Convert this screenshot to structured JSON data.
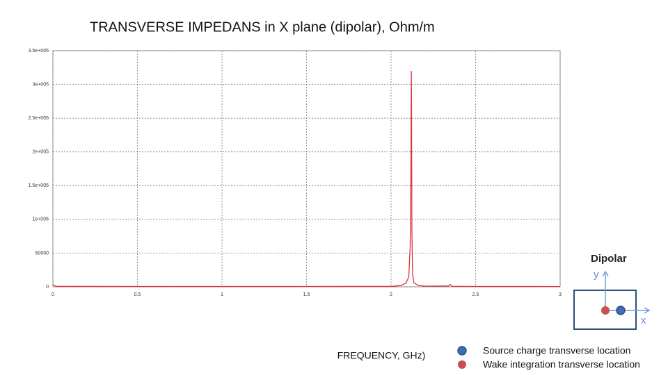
{
  "chart_data": {
    "type": "line",
    "title": "TRANSVERSE IMPEDANS in X plane (dipolar), Ohm/m",
    "x_label": "FREQUENCY, GHz)",
    "x": [
      0,
      0.02,
      0.5,
      1,
      1.5,
      2.0,
      2.06,
      2.09,
      2.105,
      2.113,
      2.117,
      2.12,
      2.121,
      2.123,
      2.127,
      2.135,
      2.16,
      2.2,
      2.34,
      2.35,
      2.36,
      2.5,
      3
    ],
    "series": [
      {
        "color": "#d9363e",
        "values": [
          3000,
          600,
          500,
          500,
          500,
          600,
          2000,
          6000,
          15000,
          60000,
          160000,
          320000,
          276000,
          90000,
          20000,
          6000,
          2000,
          1000,
          1200,
          3500,
          800,
          500,
          400
        ]
      }
    ],
    "xlim": [
      0,
      3
    ],
    "ylim": [
      0,
      350000
    ],
    "xticks": [
      0,
      0.5,
      1,
      1.5,
      2,
      2.5,
      3
    ],
    "yticks": [
      0,
      50000,
      {
        "value": 100000,
        "label": "1e+005"
      },
      {
        "value": 150000,
        "label": "1.5e+005"
      },
      {
        "value": 200000,
        "label": "2e+005"
      },
      {
        "value": 250000,
        "label": "2.5e+005"
      },
      {
        "value": 300000,
        "label": "3e+005"
      },
      {
        "value": 350000,
        "label": "3.5e+005"
      }
    ],
    "grid": true
  },
  "legend_panel": {
    "title": "Dipolar",
    "y_axis": "y",
    "x_axis": "x",
    "items": [
      {
        "label": "Source charge transverse location",
        "color": "#3c6eb4"
      },
      {
        "label": "Wake integration transverse location",
        "color": "#c9504e"
      }
    ]
  }
}
